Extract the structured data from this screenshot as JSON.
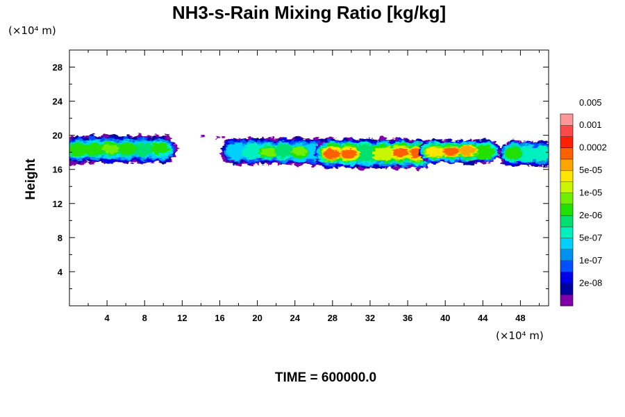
{
  "chart_data": {
    "type": "heatmap",
    "title": "NH3-s-Rain Mixing Ratio [kg/kg]",
    "ylabel": "Height",
    "x_unit": "(×10⁴ m)",
    "y_unit": "(×10⁴ m)",
    "xlim": [
      0,
      51
    ],
    "ylim": [
      0,
      30
    ],
    "x_ticks": [
      4,
      8,
      12,
      16,
      20,
      24,
      28,
      32,
      36,
      40,
      44,
      48
    ],
    "x_tick_labels": [
      "4",
      "8",
      "12",
      "16",
      "20",
      "24",
      "28",
      "32",
      "36",
      "40",
      "44",
      "48"
    ],
    "y_ticks": [
      4,
      8,
      12,
      16,
      20,
      24,
      28
    ],
    "y_tick_labels": [
      "4",
      "8",
      "12",
      "16",
      "20",
      "24",
      "28"
    ],
    "footer": "TIME = 600000.0",
    "colorbar": {
      "colors": [
        "#7f00a8",
        "#00009f",
        "#0000e6",
        "#0050ff",
        "#0090f0",
        "#00d0ff",
        "#00f0c0",
        "#00e070",
        "#20e000",
        "#70ee00",
        "#c8f500",
        "#ffe600",
        "#ffa500",
        "#ff6000",
        "#ff2000",
        "#ff4848",
        "#ff9898"
      ],
      "labels": [
        "2e-08",
        "1e-07",
        "5e-07",
        "2e-06",
        "1e-05",
        "5e-05",
        "0.0002",
        "0.001",
        "0.005"
      ],
      "label_boundaries": [
        2,
        4,
        6,
        8,
        10,
        12,
        14,
        16,
        18
      ]
    },
    "blobs": [
      {
        "x": [
          0,
          10.5
        ],
        "y": [
          16.8,
          19.9
        ],
        "peak": 9
      },
      {
        "x": [
          17,
          27
        ],
        "y": [
          16.6,
          19.6
        ],
        "peak": 9
      },
      {
        "x": [
          27,
          38
        ],
        "y": [
          16.2,
          19.5
        ],
        "peak": 13
      },
      {
        "x": [
          38,
          45
        ],
        "y": [
          16.8,
          19.4
        ],
        "peak": 13
      },
      {
        "x": [
          46.5,
          51
        ],
        "y": [
          16.4,
          19.3
        ],
        "peak": 10
      }
    ]
  }
}
